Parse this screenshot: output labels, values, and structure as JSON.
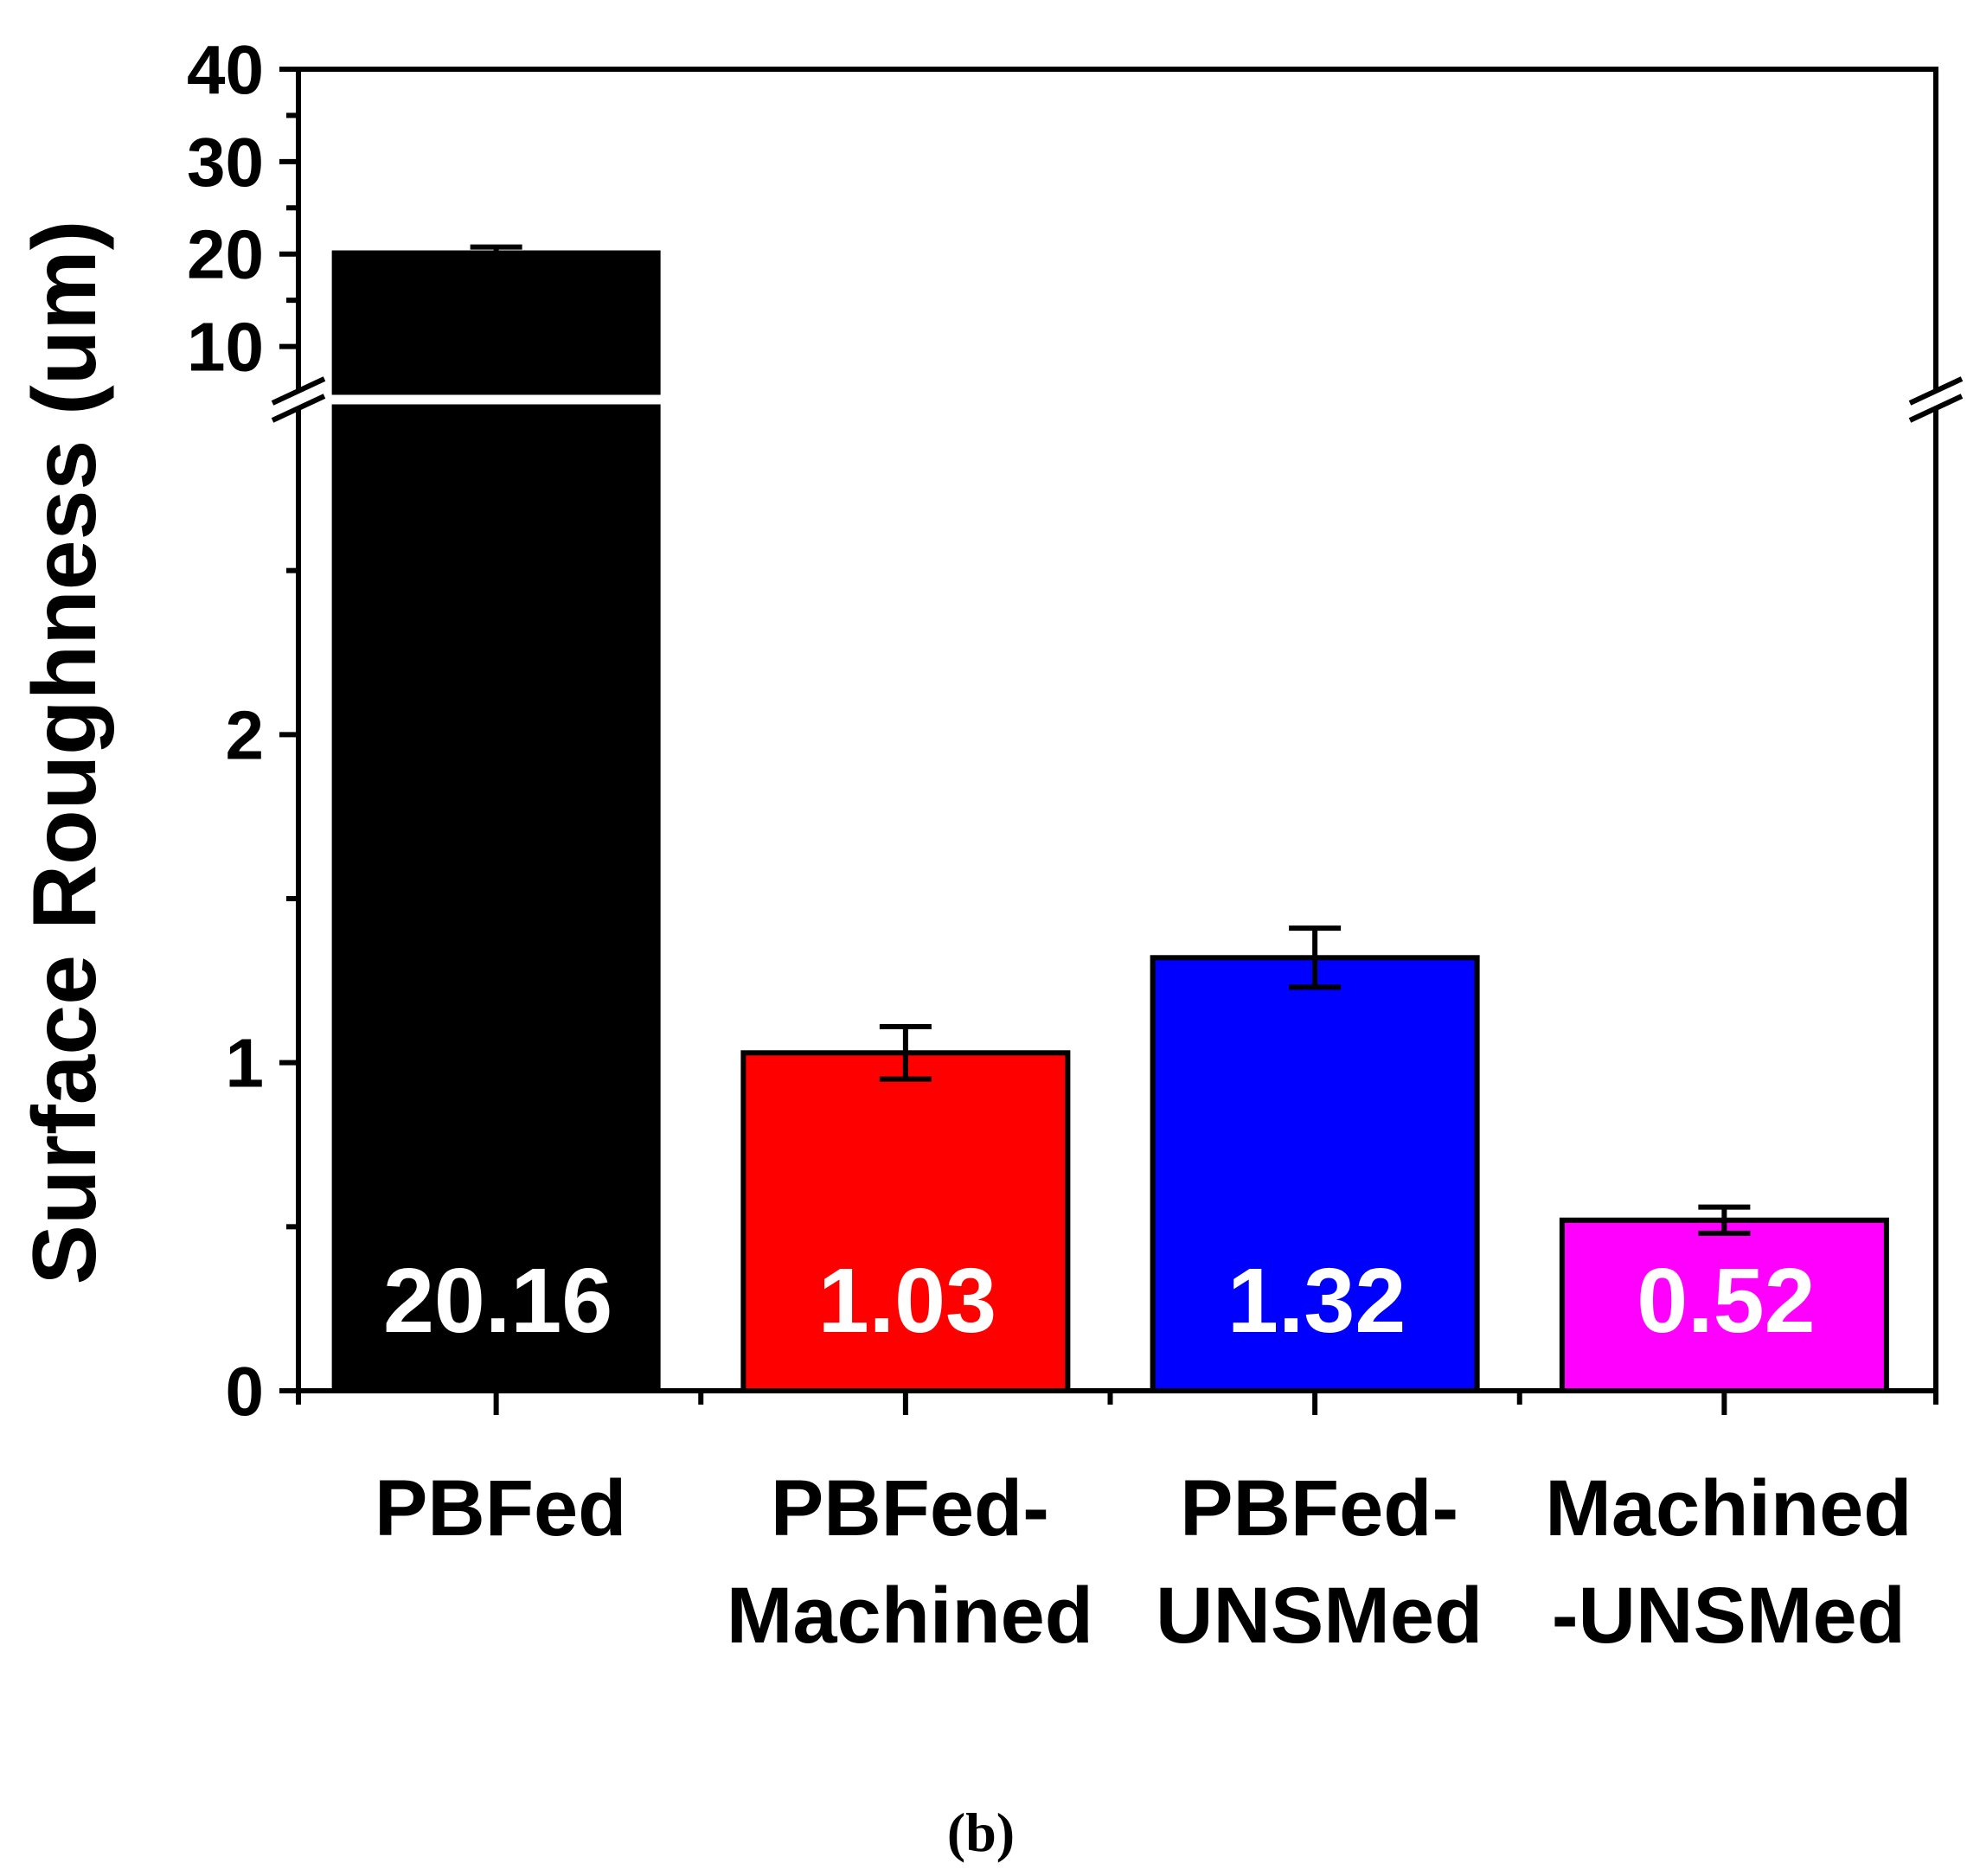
{
  "chart_data": {
    "type": "bar",
    "ylabel": "Surface Roughness (um)",
    "caption": "(b)",
    "categories": [
      [
        "PBFed"
      ],
      [
        "PBFed-",
        "Machined"
      ],
      [
        "PBFed-",
        "UNSMed"
      ],
      [
        "Machined",
        "-UNSMed"
      ]
    ],
    "values": [
      20.16,
      1.03,
      1.32,
      0.52
    ],
    "errors": [
      0.6,
      0.08,
      0.09,
      0.04
    ],
    "data_labels": [
      "20.16",
      "1.03",
      "1.32",
      "0.52"
    ],
    "colors": [
      "#000000",
      "#ff0000",
      "#0000ff",
      "#ff00ff"
    ],
    "y_axis_broken": true,
    "lower_segment": {
      "ylim": [
        0,
        3
      ],
      "ticks": [
        0,
        1,
        2
      ],
      "tick_labels": [
        "0",
        "1",
        "2"
      ],
      "minor_ticks": [
        0.5,
        1.5,
        2.5
      ]
    },
    "upper_segment": {
      "ylim": [
        5,
        40
      ],
      "ticks": [
        10,
        20,
        30,
        40
      ],
      "tick_labels": [
        "10",
        "20",
        "30",
        "40"
      ],
      "minor_ticks": [
        15,
        25,
        35
      ]
    },
    "grid": false
  }
}
